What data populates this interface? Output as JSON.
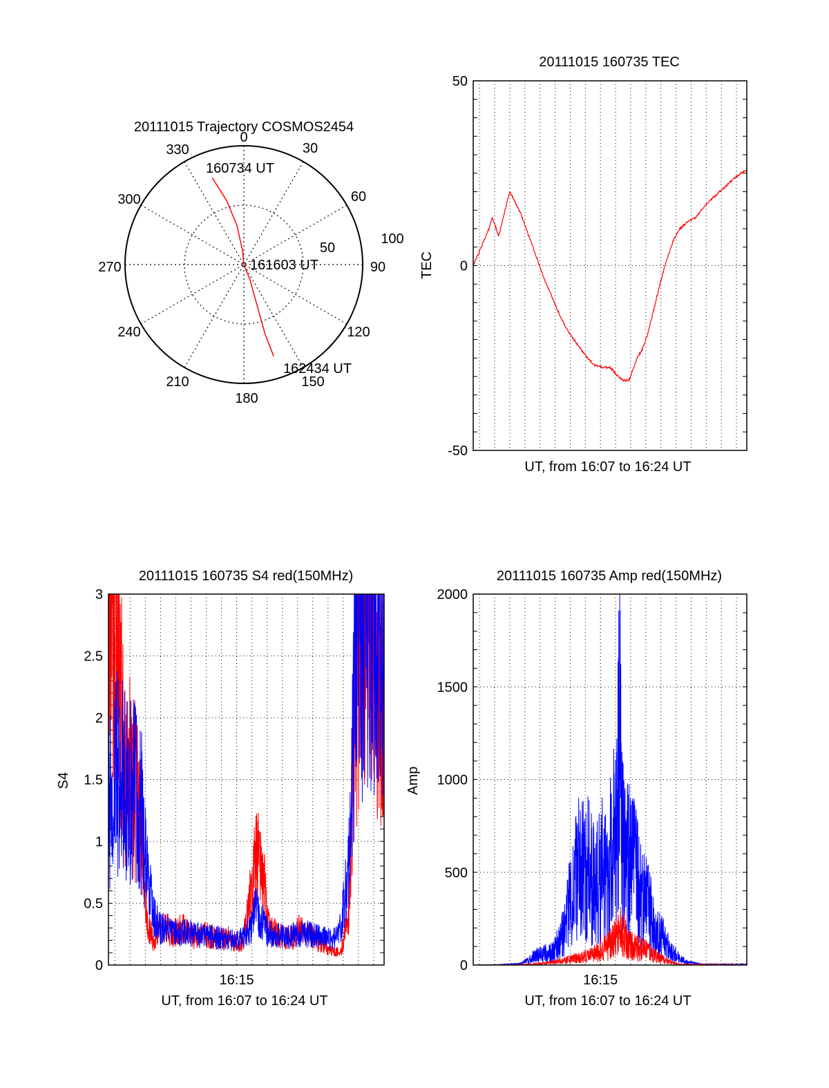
{
  "chart_data": [
    {
      "id": "trajectory",
      "type": "polar",
      "title": "20111015 Trajectory COSMOS2454",
      "azimuth_labels": [
        "0",
        "30",
        "60",
        "90",
        "120",
        "150",
        "180",
        "210",
        "240",
        "270",
        "300",
        "330"
      ],
      "elevation_ring_labels": [
        "50",
        "100"
      ],
      "elevation_rings": [
        50,
        100
      ],
      "grid": true,
      "series": [
        {
          "color": "#ff0000",
          "track_points": [
            {
              "azimuth": 340,
              "elevation": 20
            },
            {
              "azimuth": 345,
              "elevation": 40
            },
            {
              "azimuth": 350,
              "elevation": 60
            },
            {
              "azimuth": 355,
              "elevation": 80
            },
            {
              "azimuth": 90,
              "elevation": 90
            },
            {
              "azimuth": 158,
              "elevation": 78
            },
            {
              "azimuth": 162,
              "elevation": 58
            },
            {
              "azimuth": 163,
              "elevation": 35
            },
            {
              "azimuth": 162,
              "elevation": 17
            }
          ]
        }
      ],
      "annotations": [
        "160734 UT",
        "161603 UT",
        "162434 UT"
      ]
    },
    {
      "id": "tec",
      "type": "line",
      "title": "20111015 160735 TEC",
      "xlabel": "UT, from 16:07 to 16:24 UT",
      "ylabel": "TEC",
      "xlim_minutes": [
        0,
        17.2
      ],
      "ylim": [
        -50,
        50
      ],
      "yticks": [
        "-50",
        "0",
        "50"
      ],
      "ytick_values": [
        -50,
        0,
        50
      ],
      "xticks": [],
      "grid": true,
      "series": [
        {
          "color": "#ff0000",
          "x_minutes": [
            0.0,
            0.5,
            1.0,
            1.2,
            1.6,
            2.0,
            2.3,
            3.0,
            3.5,
            4.0,
            4.5,
            5.0,
            5.5,
            6.0,
            6.5,
            7.0,
            7.6,
            8.2,
            8.6,
            9.0,
            9.4,
            9.8,
            10.3,
            10.6,
            11.0,
            11.4,
            11.8,
            12.2,
            12.6,
            13.0,
            13.5,
            14.0,
            14.5,
            15.0,
            15.5,
            16.0,
            16.5,
            17.2
          ],
          "y": [
            0,
            5,
            10,
            13,
            8,
            15,
            20,
            14,
            8,
            2,
            -4,
            -9,
            -14,
            -18,
            -21,
            -24,
            -27,
            -27.5,
            -27.5,
            -29.5,
            -31,
            -31,
            -25,
            -23,
            -18,
            -11,
            -4,
            2,
            7,
            10,
            12,
            13,
            16,
            18,
            20,
            22,
            24,
            26
          ]
        }
      ]
    },
    {
      "id": "s4",
      "type": "line",
      "title": "20111015 160735 S4 red(150MHz)",
      "xlabel": "UT, from 16:07 to 16:24 UT",
      "ylabel": "S4",
      "xlim_minutes": [
        0,
        17.2
      ],
      "ylim": [
        0,
        3
      ],
      "yticks": [
        "0",
        "0.5",
        "1",
        "1.5",
        "2",
        "2.5",
        "3"
      ],
      "ytick_values": [
        0,
        0.5,
        1,
        1.5,
        2,
        2.5,
        3
      ],
      "xticks": [
        "16:15"
      ],
      "xtick_minutes": [
        8.0
      ],
      "grid": true,
      "series": [
        {
          "color": "#ff0000",
          "x_minutes": [
            0.0,
            0.5,
            1.0,
            1.5,
            2.0,
            2.4,
            2.8,
            3.2,
            3.6,
            4.0,
            4.5,
            5.0,
            5.5,
            6.0,
            6.5,
            7.0,
            7.5,
            8.0,
            8.4,
            8.8,
            9.2,
            9.6,
            10.0,
            10.5,
            11.0,
            11.5,
            12.0,
            12.5,
            13.0,
            13.5,
            14.0,
            14.5,
            15.0,
            15.5,
            16.0,
            16.5,
            17.2
          ],
          "y": [
            3,
            2.5,
            1.6,
            1.5,
            1.2,
            0.35,
            0.2,
            0.3,
            0.3,
            0.25,
            0.3,
            0.28,
            0.2,
            0.25,
            0.22,
            0.2,
            0.22,
            0.18,
            0.2,
            0.5,
            0.9,
            0.8,
            0.3,
            0.25,
            0.22,
            0.22,
            0.3,
            0.25,
            0.2,
            0.15,
            0.1,
            0.1,
            0.4,
            2.5,
            3,
            2.8,
            2
          ]
        },
        {
          "color": "#0000ff",
          "x_minutes": [
            0.0,
            0.5,
            1.0,
            1.5,
            2.0,
            2.4,
            2.8,
            3.2,
            3.6,
            4.0,
            4.5,
            5.0,
            5.5,
            6.0,
            6.5,
            7.0,
            7.5,
            8.0,
            8.4,
            8.8,
            9.2,
            9.6,
            10.0,
            10.5,
            11.0,
            11.5,
            12.0,
            12.5,
            13.0,
            13.5,
            14.0,
            14.5,
            15.0,
            15.5,
            16.0,
            16.5,
            17.2
          ],
          "y": [
            1.3,
            1.6,
            1.5,
            1.4,
            1.3,
            0.8,
            0.4,
            0.3,
            0.28,
            0.26,
            0.25,
            0.26,
            0.24,
            0.24,
            0.23,
            0.22,
            0.2,
            0.2,
            0.22,
            0.28,
            0.45,
            0.35,
            0.25,
            0.24,
            0.22,
            0.24,
            0.26,
            0.25,
            0.23,
            0.22,
            0.2,
            0.3,
            0.8,
            2.8,
            2.9,
            3,
            2.5
          ]
        }
      ]
    },
    {
      "id": "amp",
      "type": "line",
      "title": "20111015 160735 Amp red(150MHz)",
      "xlabel": "UT, from 16:07 to 16:24 UT",
      "ylabel": "Amp",
      "xlim_minutes": [
        0,
        17.2
      ],
      "ylim": [
        0,
        2000
      ],
      "yticks": [
        "0",
        "500",
        "1000",
        "1500",
        "2000"
      ],
      "ytick_values": [
        0,
        500,
        1000,
        1500,
        2000
      ],
      "xticks": [
        "16:15"
      ],
      "xtick_minutes": [
        8.0
      ],
      "grid": true,
      "series": [
        {
          "color": "#0000ff",
          "x_minutes": [
            0.0,
            1.5,
            3.0,
            3.5,
            4.0,
            5.0,
            5.5,
            6.0,
            6.5,
            7.0,
            7.5,
            8.0,
            8.5,
            9.0,
            9.2,
            9.4,
            9.8,
            10.2,
            10.6,
            11.0,
            11.5,
            12.0,
            12.5,
            13.0,
            13.5,
            14.5,
            17.2
          ],
          "y": [
            0,
            2,
            10,
            40,
            80,
            100,
            200,
            450,
            700,
            800,
            650,
            700,
            800,
            1000,
            1700,
            900,
            800,
            700,
            500,
            450,
            250,
            200,
            100,
            50,
            20,
            5,
            5
          ]
        },
        {
          "color": "#ff0000",
          "x_minutes": [
            0.0,
            3.0,
            4.0,
            5.0,
            6.0,
            7.0,
            7.5,
            8.0,
            8.5,
            9.0,
            9.3,
            9.6,
            10.0,
            10.5,
            11.0,
            11.5,
            12.0,
            12.5,
            13.0,
            17.2
          ],
          "y": [
            0,
            2,
            10,
            20,
            40,
            70,
            80,
            110,
            150,
            220,
            280,
            200,
            150,
            130,
            100,
            70,
            40,
            20,
            5,
            2
          ]
        }
      ]
    }
  ]
}
